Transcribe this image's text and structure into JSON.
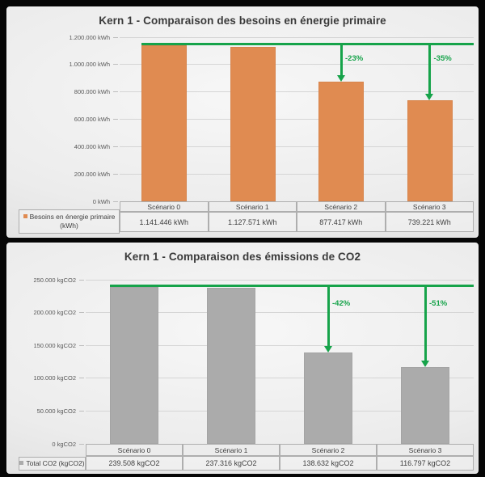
{
  "window": {
    "background": "#060606"
  },
  "colors": {
    "energy_bar": "#e08b51",
    "co2_bar": "#ababab",
    "annotation_green": "#16a34a",
    "grid": "#d5d5d5",
    "text_dark": "#3a3a3a"
  },
  "chart_data": [
    {
      "type": "bar",
      "title": "Kern 1 - Comparaison des besoins en énergie primaire",
      "categories": [
        "Scénario 0",
        "Scénario 1",
        "Scénario 2",
        "Scénario 3"
      ],
      "series": [
        {
          "name": "Besoins en énergie primaire (kWh)",
          "values": [
            1141446,
            1127571,
            877417,
            739221
          ]
        }
      ],
      "value_labels": [
        "1.141.446 kWh",
        "1.127.571 kWh",
        "877.417 kWh",
        "739.221 kWh"
      ],
      "legend_lines": [
        "Besoins en énergie primaire",
        "(kWh)"
      ],
      "ylim": [
        0,
        1200000
      ],
      "ytick_step": 200000,
      "ytick_labels": [
        "0 kWh",
        "200.000 kWh",
        "400.000 kWh",
        "600.000 kWh",
        "800.000 kWh",
        "1.000.000 kWh",
        "1.200.000 kWh"
      ],
      "grid": true,
      "legend_position": "table-left",
      "bar_color": "#e08b51",
      "annotation_color": "#16a34a",
      "baseline_from_index": 0,
      "annotations": [
        {
          "target": "Scénario 2",
          "target_index": 2,
          "label": "-23%"
        },
        {
          "target": "Scénario 3",
          "target_index": 3,
          "label": "-35%"
        }
      ]
    },
    {
      "type": "bar",
      "title": "Kern 1 - Comparaison des émissions de CO2",
      "categories": [
        "Scénario 0",
        "Scénario 1",
        "Scénario 2",
        "Scénario 3"
      ],
      "series": [
        {
          "name": "Total CO2 (kgCO2)",
          "values": [
            239508,
            237316,
            138632,
            116797
          ]
        }
      ],
      "value_labels": [
        "239.508 kgCO2",
        "237.316 kgCO2",
        "138.632 kgCO2",
        "116.797 kgCO2"
      ],
      "legend_lines": [
        "Total CO2 (kgCO2)"
      ],
      "ylim": [
        0,
        250000
      ],
      "ytick_step": 50000,
      "ytick_labels": [
        "0 kgCO2",
        "50.000 kgCO2",
        "100.000 kgCO2",
        "150.000 kgCO2",
        "200.000 kgCO2",
        "250.000 kgCO2"
      ],
      "grid": true,
      "legend_position": "table-left",
      "bar_color": "#ababab",
      "annotation_color": "#16a34a",
      "baseline_from_index": 0,
      "annotations": [
        {
          "target": "Scénario 2",
          "target_index": 2,
          "label": "-42%"
        },
        {
          "target": "Scénario 3",
          "target_index": 3,
          "label": "-51%"
        }
      ]
    }
  ]
}
